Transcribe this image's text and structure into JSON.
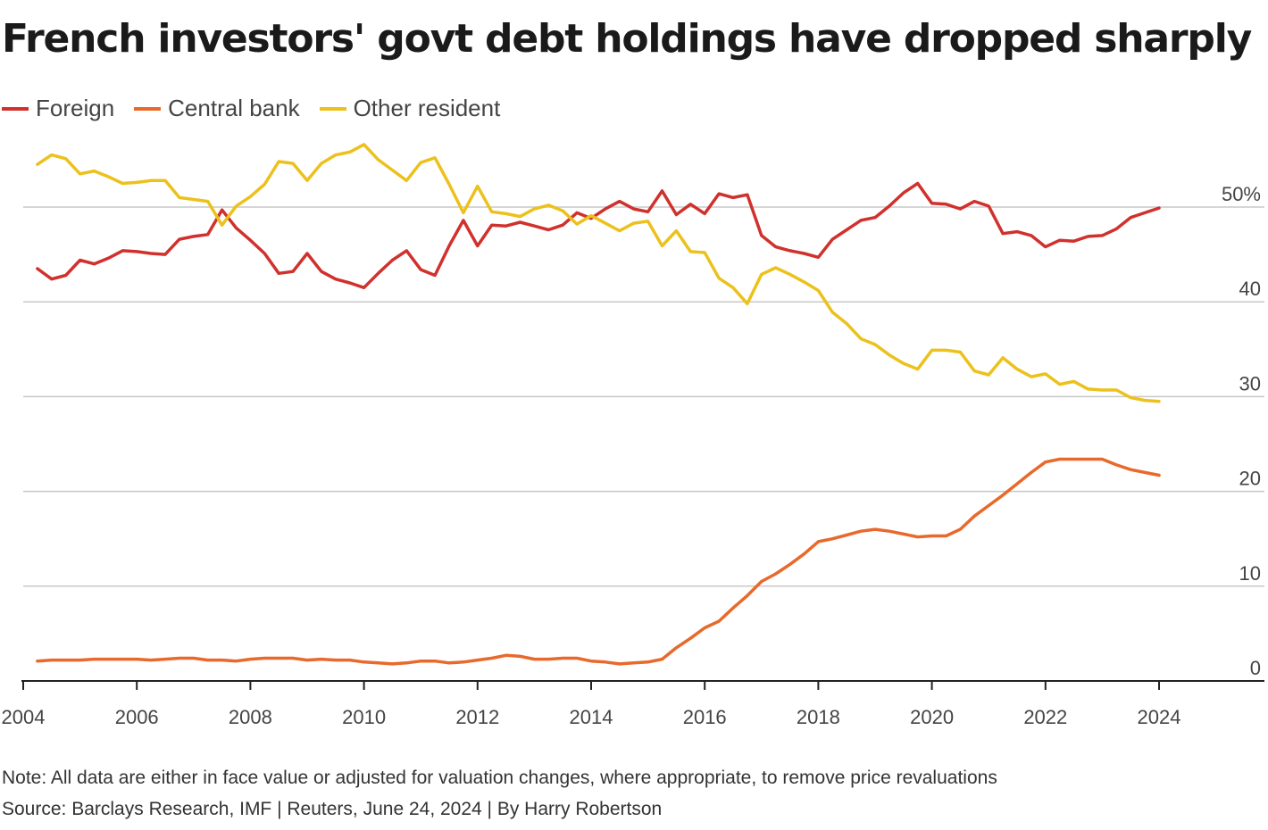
{
  "title": "French investors' govt debt holdings have dropped sharply",
  "note": "Note: All data are either in face value or adjusted for valuation changes, where appropriate, to remove price revaluations",
  "source": "Source: Barclays Research, IMF | Reuters, June 24, 2024 | By Harry Robertson",
  "chart_data": {
    "type": "line",
    "title": "French investors' govt debt holdings have dropped sharply",
    "xlim": [
      2004,
      2026
    ],
    "ylim": [
      0,
      55
    ],
    "x_ticks": [
      2004,
      2006,
      2008,
      2010,
      2012,
      2014,
      2016,
      2018,
      2020,
      2022,
      2024
    ],
    "x_tick_labels": [
      "2004",
      "2006",
      "2008",
      "2010",
      "2012",
      "2014",
      "2016",
      "2018",
      "2020",
      "2022",
      "2024"
    ],
    "y_ticks": [
      0,
      10,
      20,
      30,
      40,
      50
    ],
    "y_tick_labels": [
      "0",
      "10",
      "20",
      "30",
      "40",
      "50%"
    ],
    "grid": "horizontal",
    "legend": "top-left",
    "series": [
      {
        "name": "Foreign",
        "color": "#d0312d",
        "points": [
          [
            2004.25,
            43.5
          ],
          [
            2004.5,
            42.4
          ],
          [
            2004.75,
            42.8
          ],
          [
            2005,
            44.4
          ],
          [
            2005.25,
            44
          ],
          [
            2005.5,
            44.6
          ],
          [
            2005.75,
            45.4
          ],
          [
            2006,
            45.3
          ],
          [
            2006.25,
            45.1
          ],
          [
            2006.5,
            45
          ],
          [
            2006.75,
            46.6
          ],
          [
            2007,
            46.9
          ],
          [
            2007.25,
            47.1
          ],
          [
            2007.5,
            49.7
          ],
          [
            2007.75,
            47.8
          ],
          [
            2008,
            46.5
          ],
          [
            2008.25,
            45.1
          ],
          [
            2008.5,
            43
          ],
          [
            2008.75,
            43.2
          ],
          [
            2009,
            45.1
          ],
          [
            2009.25,
            43.2
          ],
          [
            2009.5,
            42.4
          ],
          [
            2009.75,
            42
          ],
          [
            2010,
            41.5
          ],
          [
            2010.25,
            43
          ],
          [
            2010.5,
            44.4
          ],
          [
            2010.75,
            45.4
          ],
          [
            2011,
            43.4
          ],
          [
            2011.25,
            42.8
          ],
          [
            2011.5,
            45.9
          ],
          [
            2011.75,
            48.6
          ],
          [
            2012,
            45.9
          ],
          [
            2012.25,
            48.1
          ],
          [
            2012.5,
            48
          ],
          [
            2012.75,
            48.4
          ],
          [
            2013,
            48
          ],
          [
            2013.25,
            47.6
          ],
          [
            2013.5,
            48.1
          ],
          [
            2013.75,
            49.4
          ],
          [
            2014,
            48.8
          ],
          [
            2014.25,
            49.8
          ],
          [
            2014.5,
            50.6
          ],
          [
            2014.75,
            49.8
          ],
          [
            2015,
            49.5
          ],
          [
            2015.25,
            51.7
          ],
          [
            2015.5,
            49.2
          ],
          [
            2015.75,
            50.3
          ],
          [
            2016,
            49.3
          ],
          [
            2016.25,
            51.4
          ],
          [
            2016.5,
            51
          ],
          [
            2016.75,
            51.3
          ],
          [
            2017,
            47
          ],
          [
            2017.25,
            45.8
          ],
          [
            2017.5,
            45.4
          ],
          [
            2017.75,
            45.1
          ],
          [
            2018,
            44.7
          ],
          [
            2018.25,
            46.6
          ],
          [
            2018.5,
            47.6
          ],
          [
            2018.75,
            48.6
          ],
          [
            2019,
            48.9
          ],
          [
            2019.25,
            50.1
          ],
          [
            2019.5,
            51.5
          ],
          [
            2019.75,
            52.5
          ],
          [
            2020,
            50.4
          ],
          [
            2020.25,
            50.3
          ],
          [
            2020.5,
            49.8
          ],
          [
            2020.75,
            50.6
          ],
          [
            2021,
            50.1
          ],
          [
            2021.25,
            47.2
          ],
          [
            2021.5,
            47.4
          ],
          [
            2021.75,
            47
          ],
          [
            2022,
            45.8
          ],
          [
            2022.25,
            46.5
          ],
          [
            2022.5,
            46.4
          ],
          [
            2022.75,
            46.9
          ],
          [
            2023,
            47
          ],
          [
            2023.25,
            47.7
          ],
          [
            2023.5,
            48.9
          ],
          [
            2023.75,
            49.4
          ],
          [
            2024,
            49.9
          ]
        ]
      },
      {
        "name": "Central bank",
        "color": "#e8692c",
        "points": [
          [
            2004.25,
            2.1
          ],
          [
            2004.5,
            2.2
          ],
          [
            2004.75,
            2.2
          ],
          [
            2005,
            2.2
          ],
          [
            2005.25,
            2.3
          ],
          [
            2005.5,
            2.3
          ],
          [
            2005.75,
            2.3
          ],
          [
            2006,
            2.3
          ],
          [
            2006.25,
            2.2
          ],
          [
            2006.5,
            2.3
          ],
          [
            2006.75,
            2.4
          ],
          [
            2007,
            2.4
          ],
          [
            2007.25,
            2.2
          ],
          [
            2007.5,
            2.2
          ],
          [
            2007.75,
            2.1
          ],
          [
            2008,
            2.3
          ],
          [
            2008.25,
            2.4
          ],
          [
            2008.5,
            2.4
          ],
          [
            2008.75,
            2.4
          ],
          [
            2009,
            2.2
          ],
          [
            2009.25,
            2.3
          ],
          [
            2009.5,
            2.2
          ],
          [
            2009.75,
            2.2
          ],
          [
            2010,
            2
          ],
          [
            2010.25,
            1.9
          ],
          [
            2010.5,
            1.8
          ],
          [
            2010.75,
            1.9
          ],
          [
            2011,
            2.1
          ],
          [
            2011.25,
            2.1
          ],
          [
            2011.5,
            1.9
          ],
          [
            2011.75,
            2
          ],
          [
            2012,
            2.2
          ],
          [
            2012.25,
            2.4
          ],
          [
            2012.5,
            2.7
          ],
          [
            2012.75,
            2.6
          ],
          [
            2013,
            2.3
          ],
          [
            2013.25,
            2.3
          ],
          [
            2013.5,
            2.4
          ],
          [
            2013.75,
            2.4
          ],
          [
            2014,
            2.1
          ],
          [
            2014.25,
            2
          ],
          [
            2014.5,
            1.8
          ],
          [
            2014.75,
            1.9
          ],
          [
            2015,
            2
          ],
          [
            2015.25,
            2.3
          ],
          [
            2015.5,
            3.5
          ],
          [
            2015.75,
            4.5
          ],
          [
            2016,
            5.6
          ],
          [
            2016.25,
            6.3
          ],
          [
            2016.5,
            7.7
          ],
          [
            2016.75,
            9
          ],
          [
            2017,
            10.5
          ],
          [
            2017.25,
            11.3
          ],
          [
            2017.5,
            12.3
          ],
          [
            2017.75,
            13.4
          ],
          [
            2018,
            14.7
          ],
          [
            2018.25,
            15
          ],
          [
            2018.5,
            15.4
          ],
          [
            2018.75,
            15.8
          ],
          [
            2019,
            16
          ],
          [
            2019.25,
            15.8
          ],
          [
            2019.5,
            15.5
          ],
          [
            2019.75,
            15.2
          ],
          [
            2020,
            15.3
          ],
          [
            2020.25,
            15.3
          ],
          [
            2020.5,
            16
          ],
          [
            2020.75,
            17.4
          ],
          [
            2021,
            18.5
          ],
          [
            2021.25,
            19.6
          ],
          [
            2021.5,
            20.8
          ],
          [
            2021.75,
            22
          ],
          [
            2022,
            23.1
          ],
          [
            2022.25,
            23.4
          ],
          [
            2022.5,
            23.4
          ],
          [
            2022.75,
            23.4
          ],
          [
            2023,
            23.4
          ],
          [
            2023.25,
            22.8
          ],
          [
            2023.5,
            22.3
          ],
          [
            2023.75,
            22
          ],
          [
            2024,
            21.7
          ]
        ]
      },
      {
        "name": "Other resident",
        "color": "#ecc11c",
        "points": [
          [
            2004.25,
            54.5
          ],
          [
            2004.5,
            55.5
          ],
          [
            2004.75,
            55.1
          ],
          [
            2005,
            53.5
          ],
          [
            2005.25,
            53.8
          ],
          [
            2005.5,
            53.2
          ],
          [
            2005.75,
            52.5
          ],
          [
            2006,
            52.6
          ],
          [
            2006.25,
            52.8
          ],
          [
            2006.5,
            52.8
          ],
          [
            2006.75,
            51
          ],
          [
            2007,
            50.8
          ],
          [
            2007.25,
            50.6
          ],
          [
            2007.5,
            48.1
          ],
          [
            2007.75,
            50.1
          ],
          [
            2008,
            51.1
          ],
          [
            2008.25,
            52.4
          ],
          [
            2008.5,
            54.8
          ],
          [
            2008.75,
            54.6
          ],
          [
            2009,
            52.8
          ],
          [
            2009.25,
            54.6
          ],
          [
            2009.5,
            55.5
          ],
          [
            2009.75,
            55.8
          ],
          [
            2010,
            56.6
          ],
          [
            2010.25,
            55
          ],
          [
            2010.5,
            53.9
          ],
          [
            2010.75,
            52.8
          ],
          [
            2011,
            54.7
          ],
          [
            2011.25,
            55.2
          ],
          [
            2011.5,
            52.4
          ],
          [
            2011.75,
            49.4
          ],
          [
            2012,
            52.2
          ],
          [
            2012.25,
            49.5
          ],
          [
            2012.5,
            49.3
          ],
          [
            2012.75,
            49
          ],
          [
            2013,
            49.8
          ],
          [
            2013.25,
            50.2
          ],
          [
            2013.5,
            49.6
          ],
          [
            2013.75,
            48.2
          ],
          [
            2014,
            49.1
          ],
          [
            2014.25,
            48.3
          ],
          [
            2014.5,
            47.5
          ],
          [
            2014.75,
            48.3
          ],
          [
            2015,
            48.5
          ],
          [
            2015.25,
            45.9
          ],
          [
            2015.5,
            47.5
          ],
          [
            2015.75,
            45.3
          ],
          [
            2016,
            45.2
          ],
          [
            2016.25,
            42.5
          ],
          [
            2016.5,
            41.5
          ],
          [
            2016.75,
            39.8
          ],
          [
            2017,
            42.9
          ],
          [
            2017.25,
            43.6
          ],
          [
            2017.5,
            42.9
          ],
          [
            2017.75,
            42.1
          ],
          [
            2018,
            41.2
          ],
          [
            2018.25,
            38.9
          ],
          [
            2018.5,
            37.7
          ],
          [
            2018.75,
            36.1
          ],
          [
            2019,
            35.5
          ],
          [
            2019.25,
            34.4
          ],
          [
            2019.5,
            33.5
          ],
          [
            2019.75,
            32.9
          ],
          [
            2020,
            34.9
          ],
          [
            2020.25,
            34.9
          ],
          [
            2020.5,
            34.7
          ],
          [
            2020.75,
            32.7
          ],
          [
            2021,
            32.3
          ],
          [
            2021.25,
            34.1
          ],
          [
            2021.5,
            32.9
          ],
          [
            2021.75,
            32.1
          ],
          [
            2022,
            32.4
          ],
          [
            2022.25,
            31.3
          ],
          [
            2022.5,
            31.6
          ],
          [
            2022.75,
            30.8
          ],
          [
            2023,
            30.7
          ],
          [
            2023.25,
            30.7
          ],
          [
            2023.5,
            29.9
          ],
          [
            2023.75,
            29.6
          ],
          [
            2024,
            29.5
          ]
        ]
      }
    ]
  }
}
